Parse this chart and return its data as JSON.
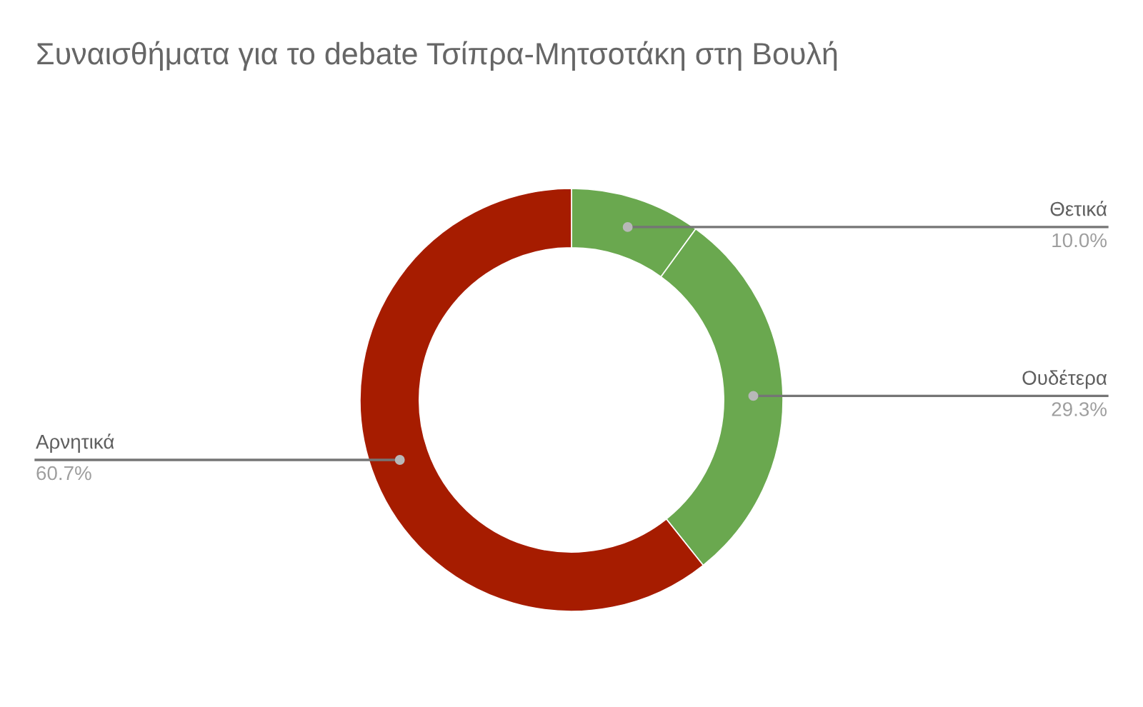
{
  "chart_data": {
    "type": "donut",
    "title": "Συναισθήματα για το debate Τσίπρα-Μητσοτάκη στη Βουλή",
    "categories": [
      "Θετικά",
      "Ουδέτερα",
      "Αρνητικά"
    ],
    "values": [
      10.0,
      29.3,
      60.7
    ],
    "colors": [
      "#6aa84f",
      "#6aa84f",
      "#a61c00"
    ],
    "value_labels": [
      "10.0%",
      "29.3%",
      "60.7%"
    ]
  }
}
